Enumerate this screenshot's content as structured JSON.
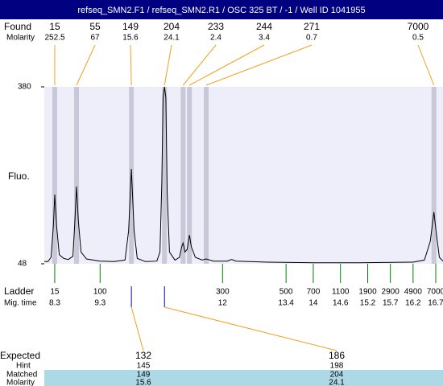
{
  "title": "refseq_SMN2.F1 / refseq_SMN2.R1 / OSC 325 BT / -1 / Well ID 1041955",
  "chart_data": {
    "type": "electropherogram",
    "ylabel": "Fluo.",
    "ylim": [
      48,
      380
    ],
    "yticks": [
      48,
      380
    ],
    "xlim": [
      8.07,
      16.86
    ],
    "trace": {
      "x": [
        8.07,
        8.15,
        8.22,
        8.27,
        8.3,
        8.34,
        8.4,
        8.5,
        8.6,
        8.7,
        8.74,
        8.78,
        8.82,
        8.88,
        9.0,
        9.3,
        9.6,
        9.85,
        9.93,
        9.99,
        10.05,
        10.12,
        10.3,
        10.55,
        10.62,
        10.66,
        10.69,
        10.72,
        10.75,
        10.78,
        10.83,
        10.95,
        11.05,
        11.1,
        11.13,
        11.17,
        11.22,
        11.27,
        11.31,
        11.4,
        11.55,
        11.64,
        11.8,
        12.1,
        12.2,
        12.3,
        13,
        14,
        15,
        16.2,
        16.45,
        16.58,
        16.66,
        16.72,
        16.78,
        16.86
      ],
      "values": [
        52,
        52,
        60,
        120,
        178,
        120,
        65,
        58,
        56,
        62,
        120,
        193,
        130,
        70,
        57,
        53,
        52,
        55,
        110,
        226,
        110,
        58,
        52,
        53,
        70,
        200,
        360,
        380,
        360,
        180,
        70,
        55,
        60,
        80,
        87,
        70,
        75,
        102,
        80,
        60,
        55,
        57,
        53,
        53,
        56,
        53,
        51,
        50,
        50,
        51,
        55,
        90,
        145,
        100,
        60,
        53
      ]
    },
    "found": {
      "label": "Found",
      "molarity_label": "Molarity",
      "peaks": [
        {
          "size": 15,
          "molarity": 252.5,
          "time": 8.3
        },
        {
          "size": 55,
          "molarity": 67,
          "time": 8.78
        },
        {
          "size": 149,
          "molarity": 15.6,
          "time": 9.99
        },
        {
          "size": 204,
          "molarity": 24.1,
          "time": 10.72
        },
        {
          "size": 233,
          "molarity": 2.4,
          "time": 11.13
        },
        {
          "size": 244,
          "molarity": 3.4,
          "time": 11.27
        },
        {
          "size": 271,
          "molarity": 0.7,
          "time": 11.64
        },
        {
          "size": 7000,
          "molarity": 0.5,
          "time": 16.66
        }
      ]
    },
    "ladder": {
      "label": "Ladder",
      "time_label": "Mig. time",
      "sizes": [
        15,
        100,
        300,
        500,
        700,
        1100,
        1900,
        2900,
        4900,
        7000
      ],
      "times": [
        8.3,
        9.3,
        12,
        13.4,
        14,
        14.6,
        15.2,
        15.7,
        16.2,
        16.7
      ]
    },
    "expected": {
      "label": "Expected",
      "hint_label": "Hint",
      "matched_label": "Matched",
      "molarity_label": "Molarity",
      "items": [
        {
          "size": 132,
          "hint": 145,
          "matched": 149,
          "molarity": 15.6
        },
        {
          "size": 186,
          "hint": 198,
          "matched": 204,
          "molarity": 24.1
        }
      ]
    }
  }
}
